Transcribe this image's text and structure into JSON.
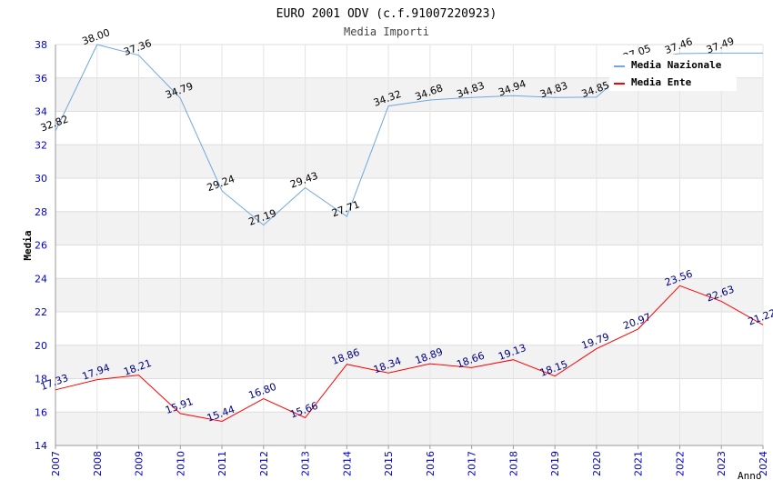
{
  "chart_data": {
    "type": "line",
    "title": "EURO 2001 ODV (c.f.91007220923)",
    "subtitle": "Media Importi",
    "xlabel": "Anno",
    "ylabel": "Media",
    "x": [
      "2007",
      "2008",
      "2009",
      "2010",
      "2011",
      "2012",
      "2013",
      "2014",
      "2015",
      "2016",
      "2017",
      "2018",
      "2019",
      "2020",
      "2021",
      "2022",
      "2023",
      "2024"
    ],
    "ylim": [
      14,
      38
    ],
    "yticks": [
      14,
      16,
      18,
      20,
      22,
      24,
      26,
      28,
      30,
      32,
      34,
      36,
      38
    ],
    "grid": true,
    "legend_position": "top-right",
    "series": [
      {
        "name": "Media Nazionale",
        "color": "#6fa8dc",
        "label_color": "#000000",
        "values": [
          32.82,
          38.0,
          37.36,
          34.79,
          29.24,
          27.19,
          29.43,
          27.71,
          34.32,
          34.68,
          34.83,
          34.94,
          34.83,
          34.85,
          37.05,
          37.46,
          37.49,
          37.49
        ],
        "labels": [
          "32.82",
          "38.00",
          "37.36",
          "34.79",
          "29.24",
          "27.19",
          "29.43",
          "27.71",
          "34.32",
          "34.68",
          "34.83",
          "34.94",
          "34.83",
          "34.85",
          "37.05",
          "37.46",
          "37.49",
          ""
        ]
      },
      {
        "name": "Media Ente",
        "color": "#ff0000",
        "label_color": "#000080",
        "values": [
          17.33,
          17.94,
          18.21,
          15.91,
          15.44,
          16.8,
          15.66,
          18.86,
          18.34,
          18.89,
          18.66,
          19.13,
          18.15,
          19.79,
          20.97,
          23.56,
          22.63,
          21.22
        ],
        "labels": [
          "17.33",
          "17.94",
          "18.21",
          "15.91",
          "15.44",
          "16.80",
          "15.66",
          "18.86",
          "18.34",
          "18.89",
          "18.66",
          "19.13",
          "18.15",
          "19.79",
          "20.97",
          "23.56",
          "22.63",
          "21.22"
        ]
      }
    ]
  }
}
